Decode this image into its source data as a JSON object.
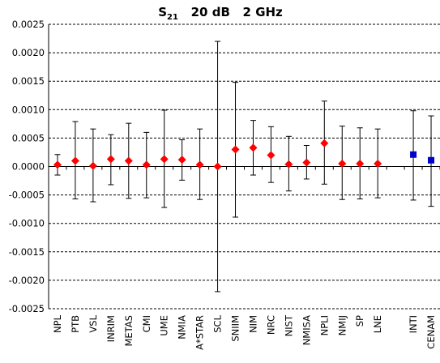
{
  "chart_data": {
    "type": "scatter",
    "title": {
      "main": "S",
      "sub": "21",
      "rest": "   20 dB   2 GHz"
    },
    "xlabel": "",
    "ylabel": "",
    "ylim": [
      -0.0025,
      0.0025
    ],
    "yticks": [
      "0.0025",
      "0.0020",
      "0.0015",
      "0.0010",
      "0.0005",
      "0.0000",
      "-0.0005",
      "-0.0010",
      "-0.0015",
      "-0.0020",
      "-0.0025"
    ],
    "grid": true,
    "legend": "none",
    "colors": {
      "diamond": "#ff0000",
      "square": "#0000cc"
    },
    "categories": [
      "NPL",
      "PTB",
      "VSL",
      "INRIM",
      "METAS",
      "CMI",
      "UME",
      "NMIA",
      "A*STAR",
      "SCL",
      "SNIIM",
      "NIM",
      "NRC",
      "NIST",
      "NMISA",
      "NPLI",
      "NMIJ",
      "SP",
      "LNE",
      "",
      "INTI",
      "CENAM"
    ],
    "points": [
      {
        "category": "NPL",
        "value": 3e-05,
        "lower": -0.00015,
        "upper": 0.00021,
        "marker": "diamond"
      },
      {
        "category": "PTB",
        "value": 0.0001,
        "lower": -0.00057,
        "upper": 0.00079,
        "marker": "diamond"
      },
      {
        "category": "VSL",
        "value": 1e-05,
        "lower": -0.00062,
        "upper": 0.00066,
        "marker": "diamond"
      },
      {
        "category": "INRIM",
        "value": 0.00013,
        "lower": -0.00032,
        "upper": 0.00056,
        "marker": "diamond"
      },
      {
        "category": "METAS",
        "value": 0.0001,
        "lower": -0.00056,
        "upper": 0.00076,
        "marker": "diamond"
      },
      {
        "category": "CMI",
        "value": 3e-05,
        "lower": -0.00055,
        "upper": 0.0006,
        "marker": "diamond"
      },
      {
        "category": "UME",
        "value": 0.00013,
        "lower": -0.00072,
        "upper": 0.00099,
        "marker": "diamond"
      },
      {
        "category": "NMIA",
        "value": 0.00012,
        "lower": -0.00024,
        "upper": 0.00047,
        "marker": "diamond"
      },
      {
        "category": "A*STAR",
        "value": 3e-05,
        "lower": -0.00058,
        "upper": 0.00066,
        "marker": "diamond"
      },
      {
        "category": "SCL",
        "value": 0.0,
        "lower": -0.0022,
        "upper": 0.0022,
        "marker": "diamond"
      },
      {
        "category": "SNIIM",
        "value": 0.0003,
        "lower": -0.00089,
        "upper": 0.00148,
        "marker": "diamond"
      },
      {
        "category": "NIM",
        "value": 0.00033,
        "lower": -0.00015,
        "upper": 0.00081,
        "marker": "diamond"
      },
      {
        "category": "NRC",
        "value": 0.0002,
        "lower": -0.00028,
        "upper": 0.0007,
        "marker": "diamond"
      },
      {
        "category": "NIST",
        "value": 4e-05,
        "lower": -0.00043,
        "upper": 0.00053,
        "marker": "diamond"
      },
      {
        "category": "NMISA",
        "value": 7e-05,
        "lower": -0.00022,
        "upper": 0.00037,
        "marker": "diamond"
      },
      {
        "category": "NPLI",
        "value": 0.00041,
        "lower": -0.00031,
        "upper": 0.00115,
        "marker": "diamond"
      },
      {
        "category": "NMIJ",
        "value": 5e-05,
        "lower": -0.00058,
        "upper": 0.00071,
        "marker": "diamond"
      },
      {
        "category": "SP",
        "value": 5e-05,
        "lower": -0.00057,
        "upper": 0.00068,
        "marker": "diamond"
      },
      {
        "category": "LNE",
        "value": 5e-05,
        "lower": -0.00055,
        "upper": 0.00066,
        "marker": "diamond"
      },
      {
        "category": "INTI",
        "value": 0.00021,
        "lower": -0.00059,
        "upper": 0.00098,
        "marker": "square"
      },
      {
        "category": "CENAM",
        "value": 0.00011,
        "lower": -0.0007,
        "upper": 0.00089,
        "marker": "square"
      }
    ]
  }
}
